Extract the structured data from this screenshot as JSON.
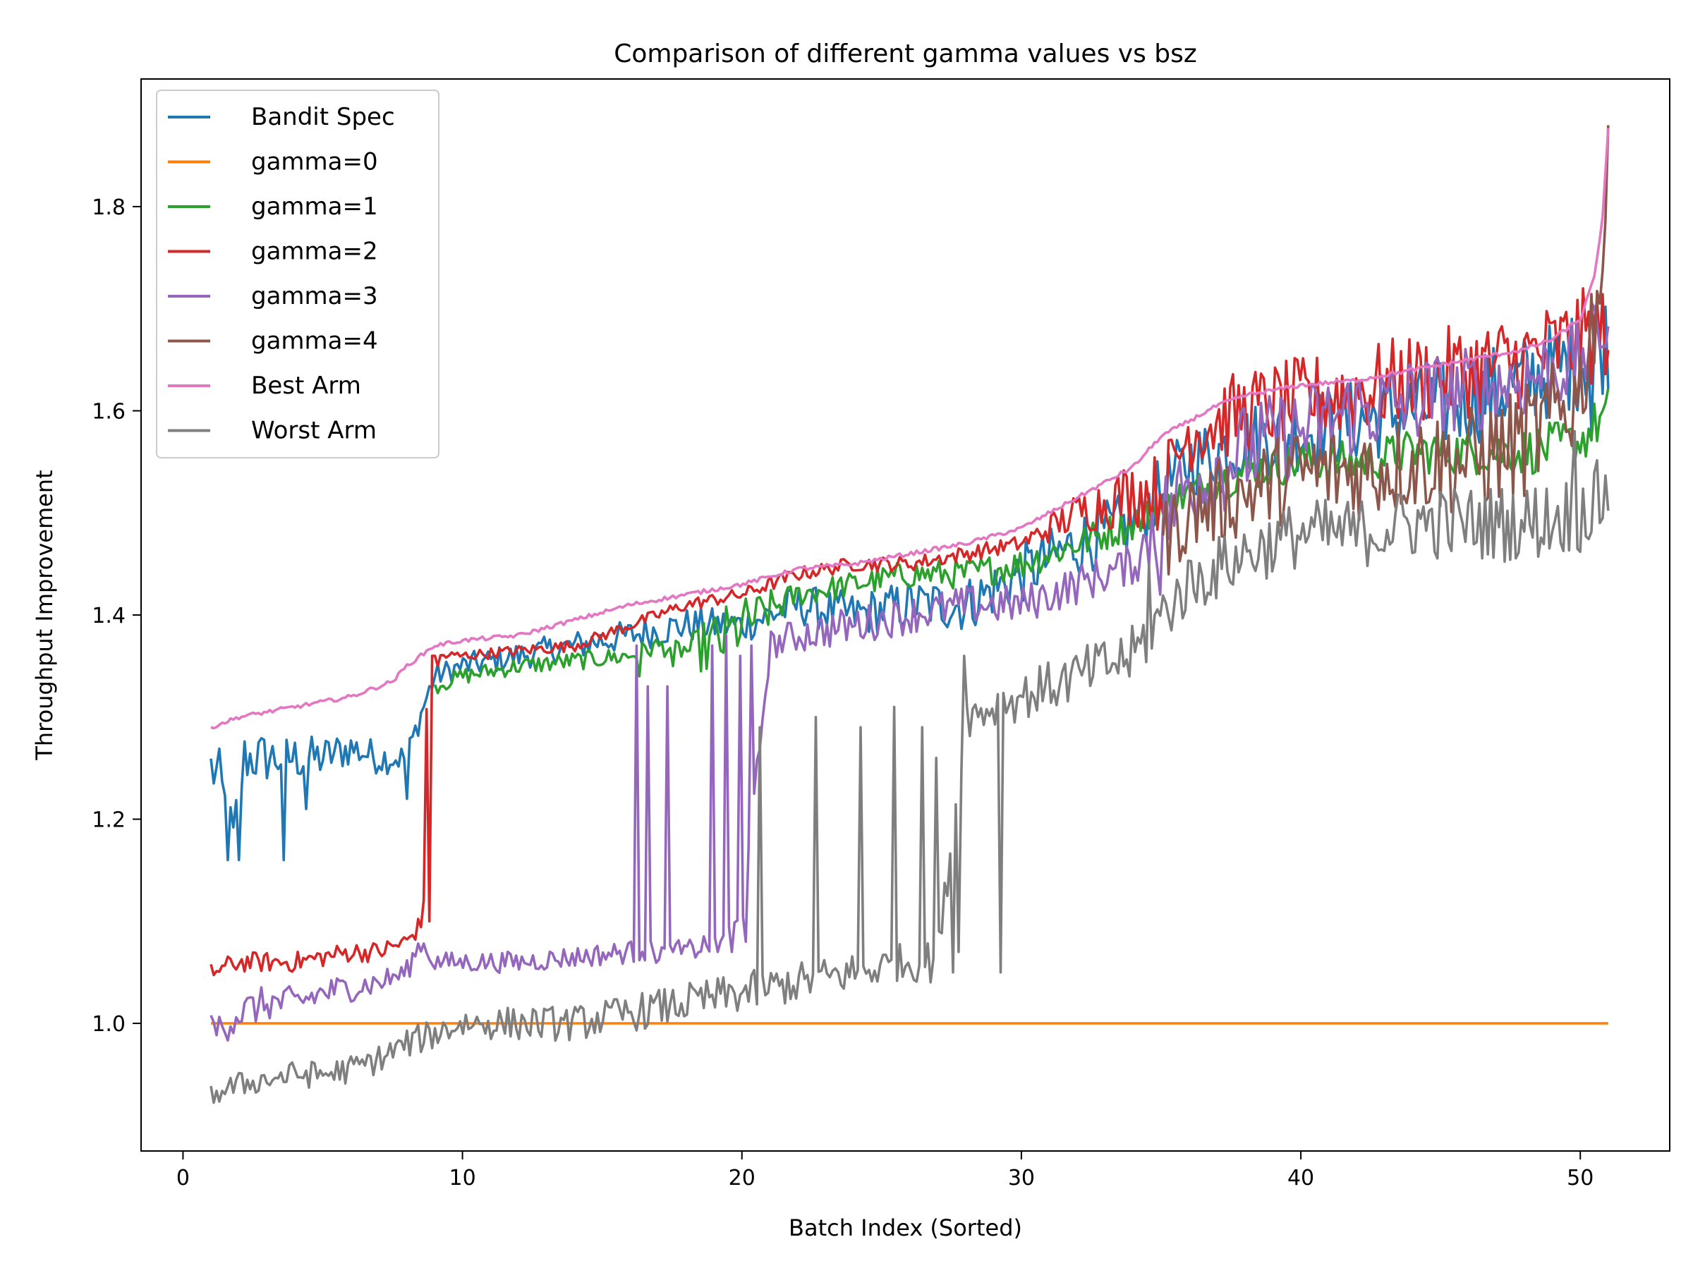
{
  "chart_data": {
    "type": "line",
    "title": "Comparison of different gamma values vs bsz",
    "xlabel": "Batch Index (Sorted)",
    "ylabel": "Throughput Improvement",
    "xlim": [
      -1.5,
      53.2
    ],
    "ylim": [
      0.875,
      1.925
    ],
    "xticks": [
      0,
      10,
      20,
      30,
      40,
      50
    ],
    "yticks": [
      1.0,
      1.2,
      1.4,
      1.6,
      1.8
    ],
    "grid": false,
    "legend_position": "top-left",
    "x_range": [
      1,
      51
    ],
    "points_per_series": 500,
    "series": [
      {
        "name": "Bandit Spec",
        "color": "#1f77b4",
        "anchors": [
          [
            1,
            1.25
          ],
          [
            1.3,
            1.24
          ],
          [
            1.6,
            1.2
          ],
          [
            1.8,
            1.18
          ],
          [
            2.2,
            1.26
          ],
          [
            3,
            1.26
          ],
          [
            4,
            1.26
          ],
          [
            5,
            1.26
          ],
          [
            6,
            1.27
          ],
          [
            7,
            1.26
          ],
          [
            8,
            1.26
          ],
          [
            8.6,
            1.31
          ],
          [
            9,
            1.34
          ],
          [
            10,
            1.35
          ],
          [
            12,
            1.36
          ],
          [
            14,
            1.37
          ],
          [
            16,
            1.38
          ],
          [
            18,
            1.39
          ],
          [
            20,
            1.39
          ],
          [
            22,
            1.41
          ],
          [
            24,
            1.4
          ],
          [
            26,
            1.41
          ],
          [
            28,
            1.41
          ],
          [
            30,
            1.44
          ],
          [
            32,
            1.47
          ],
          [
            34,
            1.49
          ],
          [
            36,
            1.55
          ],
          [
            38,
            1.57
          ],
          [
            40,
            1.58
          ],
          [
            42,
            1.59
          ],
          [
            44,
            1.6
          ],
          [
            46,
            1.61
          ],
          [
            48,
            1.63
          ],
          [
            50,
            1.65
          ],
          [
            51,
            1.67
          ]
        ],
        "noise": [
          [
            1,
            0.03
          ],
          [
            9,
            0.012
          ],
          [
            20,
            0.018
          ],
          [
            35,
            0.035
          ],
          [
            51,
            0.05
          ]
        ],
        "spikes": [
          [
            1.6,
            1.16
          ],
          [
            2.0,
            1.16
          ],
          [
            3.6,
            1.16
          ],
          [
            8.0,
            1.22
          ],
          [
            4.4,
            1.21
          ],
          [
            50.4,
            1.58
          ]
        ]
      },
      {
        "name": "gamma=0",
        "color": "#ff7f0e",
        "anchors": [
          [
            1,
            1.0
          ],
          [
            51,
            1.0
          ]
        ],
        "noise": [
          [
            1,
            0
          ],
          [
            51,
            0
          ]
        ],
        "spikes": []
      },
      {
        "name": "gamma=1",
        "color": "#2ca02c",
        "anchors": [
          [
            9,
            1.33
          ],
          [
            10,
            1.34
          ],
          [
            12,
            1.35
          ],
          [
            14,
            1.355
          ],
          [
            16,
            1.36
          ],
          [
            17,
            1.37
          ],
          [
            18,
            1.365
          ],
          [
            19,
            1.37
          ],
          [
            20,
            1.39
          ],
          [
            22,
            1.42
          ],
          [
            24,
            1.43
          ],
          [
            26,
            1.44
          ],
          [
            28,
            1.44
          ],
          [
            30,
            1.45
          ],
          [
            32,
            1.47
          ],
          [
            34,
            1.49
          ],
          [
            36,
            1.52
          ],
          [
            38,
            1.54
          ],
          [
            40,
            1.55
          ],
          [
            42,
            1.55
          ],
          [
            44,
            1.56
          ],
          [
            46,
            1.56
          ],
          [
            48,
            1.56
          ],
          [
            50,
            1.57
          ],
          [
            51,
            1.6
          ]
        ],
        "noise": [
          [
            9,
            0.008
          ],
          [
            18,
            0.01
          ],
          [
            19,
            0.035
          ],
          [
            22,
            0.012
          ],
          [
            35,
            0.018
          ],
          [
            51,
            0.025
          ]
        ],
        "spikes": [
          [
            16.3,
            1.34
          ],
          [
            17.5,
            1.35
          ]
        ]
      },
      {
        "name": "gamma=2",
        "color": "#d62728",
        "anchors": [
          [
            1,
            1.05
          ],
          [
            2,
            1.06
          ],
          [
            3,
            1.06
          ],
          [
            4,
            1.06
          ],
          [
            5,
            1.065
          ],
          [
            6,
            1.07
          ],
          [
            7,
            1.07
          ],
          [
            8,
            1.08
          ],
          [
            8.6,
            1.1
          ],
          [
            8.75,
            1.36
          ],
          [
            9,
            1.36
          ],
          [
            10,
            1.36
          ],
          [
            14,
            1.37
          ],
          [
            18,
            1.41
          ],
          [
            20,
            1.42
          ],
          [
            22,
            1.44
          ],
          [
            24,
            1.45
          ],
          [
            26,
            1.45
          ],
          [
            28,
            1.46
          ],
          [
            30,
            1.47
          ],
          [
            32,
            1.5
          ],
          [
            34,
            1.52
          ],
          [
            35,
            1.52
          ],
          [
            36,
            1.58
          ],
          [
            38,
            1.6
          ],
          [
            40,
            1.61
          ],
          [
            42,
            1.62
          ],
          [
            44,
            1.63
          ],
          [
            46,
            1.64
          ],
          [
            48,
            1.65
          ],
          [
            50,
            1.67
          ],
          [
            51,
            1.68
          ]
        ],
        "noise": [
          [
            1,
            0.01
          ],
          [
            8.6,
            0.01
          ],
          [
            9,
            0.005
          ],
          [
            30,
            0.008
          ],
          [
            35,
            0.04
          ],
          [
            51,
            0.05
          ]
        ],
        "spikes": [
          [
            8.8,
            1.1
          ],
          [
            8.9,
            1.36
          ],
          [
            9.0,
            1.12
          ],
          [
            9.05,
            1.36
          ],
          [
            9.1,
            1.1
          ],
          [
            9.15,
            1.35
          ]
        ]
      },
      {
        "name": "gamma=3",
        "color": "#9467bd",
        "anchors": [
          [
            1,
            0.99
          ],
          [
            2,
            1.01
          ],
          [
            3,
            1.02
          ],
          [
            4,
            1.02
          ],
          [
            5,
            1.03
          ],
          [
            6,
            1.035
          ],
          [
            7,
            1.04
          ],
          [
            8,
            1.05
          ],
          [
            8.5,
            1.08
          ],
          [
            9,
            1.06
          ],
          [
            10,
            1.06
          ],
          [
            12,
            1.06
          ],
          [
            14,
            1.065
          ],
          [
            16,
            1.07
          ],
          [
            17,
            1.07
          ],
          [
            18,
            1.07
          ],
          [
            19,
            1.08
          ],
          [
            20,
            1.1
          ],
          [
            21,
            1.37
          ],
          [
            22,
            1.38
          ],
          [
            24,
            1.39
          ],
          [
            26,
            1.4
          ],
          [
            28,
            1.41
          ],
          [
            30,
            1.41
          ],
          [
            32,
            1.43
          ],
          [
            34,
            1.45
          ],
          [
            35,
            1.49
          ],
          [
            36,
            1.53
          ],
          [
            38,
            1.56
          ],
          [
            40,
            1.58
          ],
          [
            42,
            1.6
          ],
          [
            44,
            1.61
          ],
          [
            46,
            1.62
          ],
          [
            48,
            1.63
          ],
          [
            50,
            1.65
          ],
          [
            51,
            1.69
          ]
        ],
        "noise": [
          [
            1,
            0.02
          ],
          [
            9,
            0.01
          ],
          [
            20,
            0.012
          ],
          [
            22,
            0.018
          ],
          [
            34,
            0.02
          ],
          [
            35,
            0.05
          ],
          [
            51,
            0.04
          ]
        ],
        "spikes": [
          [
            16.2,
            1.37
          ],
          [
            16.4,
            1.07
          ],
          [
            16.6,
            1.33
          ],
          [
            16.8,
            1.07
          ],
          [
            17.3,
            1.33
          ],
          [
            17.5,
            1.07
          ],
          [
            18.9,
            1.37
          ],
          [
            19.1,
            1.07
          ],
          [
            19.4,
            1.38
          ],
          [
            19.6,
            1.07
          ],
          [
            19.9,
            1.36
          ],
          [
            20.1,
            1.08
          ],
          [
            20.3,
            1.37
          ],
          [
            35.0,
            1.42
          ],
          [
            34.7,
            1.5
          ]
        ]
      },
      {
        "name": "gamma=4",
        "color": "#8c564b",
        "anchors": [
          [
            35,
            1.47
          ],
          [
            36,
            1.5
          ],
          [
            38,
            1.52
          ],
          [
            40,
            1.54
          ],
          [
            42,
            1.54
          ],
          [
            44,
            1.55
          ],
          [
            46,
            1.55
          ],
          [
            48,
            1.57
          ],
          [
            49,
            1.59
          ],
          [
            50,
            1.62
          ],
          [
            50.5,
            1.7
          ],
          [
            50.8,
            1.75
          ],
          [
            51,
            1.82
          ]
        ],
        "noise": [
          [
            35,
            0.04
          ],
          [
            51,
            0.06
          ]
        ],
        "spikes": []
      },
      {
        "name": "Best Arm",
        "color": "#e377c2",
        "anchors": [
          [
            1,
            1.29
          ],
          [
            2,
            1.3
          ],
          [
            3,
            1.305
          ],
          [
            4,
            1.31
          ],
          [
            5,
            1.315
          ],
          [
            6,
            1.32
          ],
          [
            7,
            1.33
          ],
          [
            7.5,
            1.335
          ],
          [
            8,
            1.35
          ],
          [
            8.5,
            1.36
          ],
          [
            9,
            1.37
          ],
          [
            10,
            1.375
          ],
          [
            12,
            1.38
          ],
          [
            14,
            1.395
          ],
          [
            16,
            1.41
          ],
          [
            18,
            1.42
          ],
          [
            20,
            1.43
          ],
          [
            22,
            1.445
          ],
          [
            24,
            1.45
          ],
          [
            26,
            1.46
          ],
          [
            28,
            1.47
          ],
          [
            30,
            1.485
          ],
          [
            31,
            1.5
          ],
          [
            32,
            1.515
          ],
          [
            33,
            1.53
          ],
          [
            34,
            1.545
          ],
          [
            34.5,
            1.56
          ],
          [
            35,
            1.575
          ],
          [
            36,
            1.59
          ],
          [
            37,
            1.605
          ],
          [
            38,
            1.615
          ],
          [
            40,
            1.625
          ],
          [
            42,
            1.63
          ],
          [
            44,
            1.64
          ],
          [
            46,
            1.65
          ],
          [
            48,
            1.66
          ],
          [
            49,
            1.67
          ],
          [
            49.5,
            1.68
          ],
          [
            50,
            1.69
          ],
          [
            50.5,
            1.73
          ],
          [
            50.8,
            1.79
          ],
          [
            51,
            1.875
          ]
        ],
        "noise": [
          [
            1,
            0.002
          ],
          [
            51,
            0.002
          ]
        ],
        "spikes": []
      },
      {
        "name": "Worst Arm",
        "color": "#7f7f7f",
        "anchors": [
          [
            1,
            0.93
          ],
          [
            2,
            0.94
          ],
          [
            3,
            0.945
          ],
          [
            4,
            0.95
          ],
          [
            5,
            0.95
          ],
          [
            6,
            0.955
          ],
          [
            7,
            0.965
          ],
          [
            8,
            0.98
          ],
          [
            9,
            0.99
          ],
          [
            10,
            1.0
          ],
          [
            12,
            1.0
          ],
          [
            14,
            1.0
          ],
          [
            16,
            1.01
          ],
          [
            18,
            1.02
          ],
          [
            20,
            1.03
          ],
          [
            22,
            1.04
          ],
          [
            24,
            1.05
          ],
          [
            26,
            1.06
          ],
          [
            27,
            1.06
          ],
          [
            28,
            1.3
          ],
          [
            30,
            1.32
          ],
          [
            32,
            1.34
          ],
          [
            34,
            1.36
          ],
          [
            35,
            1.4
          ],
          [
            36,
            1.43
          ],
          [
            38,
            1.46
          ],
          [
            40,
            1.48
          ],
          [
            42,
            1.48
          ],
          [
            44,
            1.49
          ],
          [
            46,
            1.49
          ],
          [
            48,
            1.49
          ],
          [
            50,
            1.5
          ],
          [
            51,
            1.52
          ]
        ],
        "noise": [
          [
            1,
            0.012
          ],
          [
            9,
            0.015
          ],
          [
            20,
            0.02
          ],
          [
            27,
            0.02
          ],
          [
            28,
            0.02
          ],
          [
            34,
            0.03
          ],
          [
            51,
            0.04
          ]
        ],
        "spikes": [
          [
            20.6,
            1.29
          ],
          [
            22.6,
            1.3
          ],
          [
            24.2,
            1.29
          ],
          [
            25.4,
            1.31
          ],
          [
            26.0,
            1.3
          ],
          [
            26.5,
            1.29
          ],
          [
            27.0,
            1.26
          ],
          [
            27.6,
            1.05
          ],
          [
            29.3,
            1.05
          ],
          [
            28.0,
            1.36
          ],
          [
            27.8,
            1.07
          ],
          [
            34.6,
            1.45
          ],
          [
            49.8,
            1.58
          ]
        ]
      }
    ]
  }
}
